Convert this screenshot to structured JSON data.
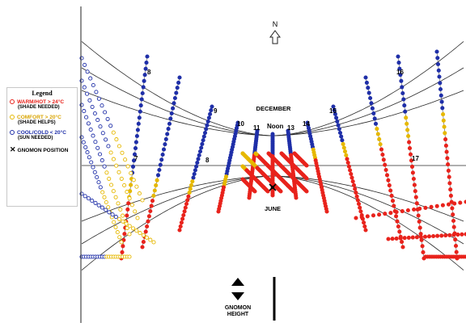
{
  "legend": {
    "title": "Legend",
    "items": [
      {
        "label": "WARM/HOT  > 24°C",
        "sub": "(SHADE NEEDED)",
        "color": "#e8231c"
      },
      {
        "label": "COMFORT  > 20°C",
        "sub": "(SHADE HELPS)",
        "color": "#e6b800"
      },
      {
        "label": "COOL/COLD  < 20°C",
        "sub": "(SUN NEEDED)",
        "color": "#1f2fa8"
      }
    ],
    "gnomon_label": "GNOMON POSITION"
  },
  "north_label": "N",
  "month_labels": {
    "winter": "DECEMBER",
    "summer": "JUNE"
  },
  "hour_labels_winter": [
    "8",
    "9",
    "10",
    "11",
    "Noon",
    "13",
    "14",
    "15",
    "16"
  ],
  "hour_labels_summer": [
    "7",
    "8",
    "17"
  ],
  "gnomon_height_label": [
    "GNOMON",
    "HEIGHT"
  ],
  "colors": {
    "hot": "#e8231c",
    "comfort": "#e6b800",
    "cold": "#1f2fa8",
    "line": "#2a2a2a"
  }
}
